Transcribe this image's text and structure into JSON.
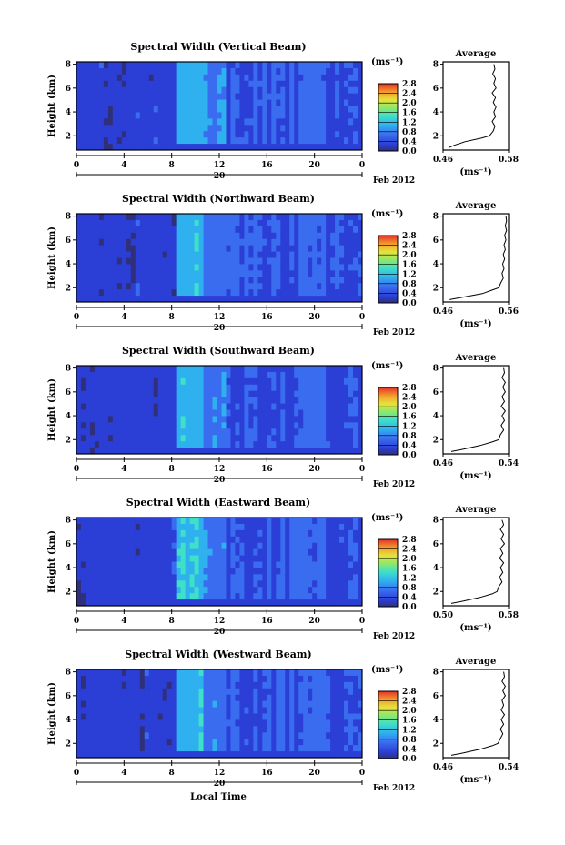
{
  "figure": {
    "xlabel": "Local Time",
    "date_tag": "Feb 2012",
    "day_label": "20"
  },
  "chart_data": [
    {
      "type": "heatmap",
      "title": "Spectral Width (Vertical Beam)",
      "ylabel": "Height (km)",
      "x_ticks": [
        "0",
        "4",
        "8",
        "12",
        "16",
        "20",
        "0"
      ],
      "xlim": [
        0,
        24
      ],
      "y_ticks": [
        "2",
        "4",
        "6",
        "8"
      ],
      "ylim": [
        0.8,
        8.2
      ],
      "colorbar": {
        "unit": "(ms⁻¹)",
        "ticks": [
          "0.0",
          "0.4",
          "0.8",
          "1.2",
          "1.6",
          "2.0",
          "2.4",
          "2.8"
        ],
        "range": [
          0,
          2.8
        ]
      },
      "average": {
        "title": "Average",
        "xlabel": "(ms⁻¹)",
        "x_ticks": [
          "0.46",
          "0.58"
        ],
        "xlim": [
          0.46,
          0.58
        ],
        "y_ticks": [
          "2",
          "4",
          "6",
          "8"
        ],
        "ylim": [
          0.8,
          8.2
        ],
        "profile_heights": [
          1.0,
          1.2,
          1.5,
          1.8,
          2.0,
          2.4,
          2.8,
          3.2,
          3.6,
          4.0,
          4.4,
          4.8,
          5.2,
          5.6,
          6.0,
          6.4,
          6.8,
          7.2,
          7.6,
          8.0
        ],
        "profile_values": [
          0.47,
          0.48,
          0.5,
          0.53,
          0.545,
          0.552,
          0.555,
          0.55,
          0.556,
          0.553,
          0.557,
          0.552,
          0.556,
          0.55,
          0.557,
          0.553,
          0.556,
          0.551,
          0.555,
          0.553
        ]
      }
    },
    {
      "type": "heatmap",
      "title": "Spectral Width (Northward Beam)",
      "ylabel": "Height (km)",
      "x_ticks": [
        "0",
        "4",
        "8",
        "12",
        "16",
        "20",
        "0"
      ],
      "xlim": [
        0,
        24
      ],
      "y_ticks": [
        "2",
        "4",
        "6",
        "8"
      ],
      "ylim": [
        0.8,
        8.2
      ],
      "colorbar": {
        "unit": "(ms⁻¹)",
        "ticks": [
          "0.0",
          "0.4",
          "0.8",
          "1.2",
          "1.6",
          "2.0",
          "2.4",
          "2.8"
        ],
        "range": [
          0,
          2.8
        ]
      },
      "average": {
        "title": "Average",
        "xlabel": "(ms⁻¹)",
        "x_ticks": [
          "0.46",
          "0.56"
        ],
        "xlim": [
          0.46,
          0.56
        ],
        "y_ticks": [
          "2",
          "4",
          "6",
          "8"
        ],
        "ylim": [
          0.8,
          8.2
        ],
        "profile_heights": [
          1.0,
          1.2,
          1.5,
          1.8,
          2.0,
          2.4,
          2.8,
          3.2,
          3.6,
          4.0,
          4.4,
          4.8,
          5.2,
          5.6,
          6.0,
          6.4,
          6.8,
          7.2,
          7.6,
          8.0
        ],
        "profile_values": [
          0.47,
          0.49,
          0.52,
          0.535,
          0.545,
          0.548,
          0.552,
          0.55,
          0.553,
          0.551,
          0.554,
          0.552,
          0.555,
          0.553,
          0.556,
          0.554,
          0.557,
          0.555,
          0.557,
          0.556
        ]
      }
    },
    {
      "type": "heatmap",
      "title": "Spectral Width (Southward Beam)",
      "ylabel": "Height (km)",
      "x_ticks": [
        "0",
        "4",
        "8",
        "12",
        "16",
        "20",
        "0"
      ],
      "xlim": [
        0,
        24
      ],
      "y_ticks": [
        "2",
        "4",
        "6",
        "8"
      ],
      "ylim": [
        0.8,
        8.2
      ],
      "colorbar": {
        "unit": "(ms⁻¹)",
        "ticks": [
          "0.0",
          "0.4",
          "0.8",
          "1.2",
          "1.6",
          "2.0",
          "2.4",
          "2.8"
        ],
        "range": [
          0,
          2.8
        ]
      },
      "average": {
        "title": "Average",
        "xlabel": "(ms⁻¹)",
        "x_ticks": [
          "0.46",
          "0.54"
        ],
        "xlim": [
          0.46,
          0.54
        ],
        "y_ticks": [
          "2",
          "4",
          "6",
          "8"
        ],
        "ylim": [
          0.8,
          8.2
        ],
        "profile_heights": [
          1.0,
          1.2,
          1.5,
          1.8,
          2.0,
          2.4,
          2.8,
          3.2,
          3.6,
          4.0,
          4.4,
          4.8,
          5.2,
          5.6,
          6.0,
          6.4,
          6.8,
          7.2,
          7.6,
          8.0
        ],
        "profile_values": [
          0.47,
          0.485,
          0.505,
          0.52,
          0.528,
          0.53,
          0.534,
          0.531,
          0.535,
          0.532,
          0.536,
          0.531,
          0.535,
          0.532,
          0.536,
          0.533,
          0.536,
          0.532,
          0.535,
          0.534
        ]
      }
    },
    {
      "type": "heatmap",
      "title": "Spectral Width (Eastward Beam)",
      "ylabel": "Height (km)",
      "x_ticks": [
        "0",
        "4",
        "8",
        "12",
        "16",
        "20",
        "0"
      ],
      "xlim": [
        0,
        24
      ],
      "y_ticks": [
        "2",
        "4",
        "6",
        "8"
      ],
      "ylim": [
        0.8,
        8.2
      ],
      "colorbar": {
        "unit": "(ms⁻¹)",
        "ticks": [
          "0.0",
          "0.4",
          "0.8",
          "1.2",
          "1.6",
          "2.0",
          "2.4",
          "2.8"
        ],
        "range": [
          0,
          2.8
        ]
      },
      "average": {
        "title": "Average",
        "xlabel": "(ms⁻¹)",
        "x_ticks": [
          "0.50",
          "0.58"
        ],
        "xlim": [
          0.5,
          0.58
        ],
        "y_ticks": [
          "2",
          "4",
          "6",
          "8"
        ],
        "ylim": [
          0.8,
          8.2
        ],
        "profile_heights": [
          1.0,
          1.2,
          1.5,
          1.8,
          2.0,
          2.4,
          2.8,
          3.2,
          3.6,
          4.0,
          4.4,
          4.8,
          5.2,
          5.6,
          6.0,
          6.4,
          6.8,
          7.2,
          7.6,
          8.0
        ],
        "profile_values": [
          0.51,
          0.525,
          0.545,
          0.56,
          0.566,
          0.568,
          0.572,
          0.569,
          0.573,
          0.57,
          0.574,
          0.569,
          0.573,
          0.57,
          0.575,
          0.571,
          0.574,
          0.57,
          0.574,
          0.572
        ]
      }
    },
    {
      "type": "heatmap",
      "title": "Spectral Width (Westward Beam)",
      "ylabel": "Height (km)",
      "x_ticks": [
        "0",
        "4",
        "8",
        "12",
        "16",
        "20",
        "0"
      ],
      "xlim": [
        0,
        24
      ],
      "y_ticks": [
        "2",
        "4",
        "6",
        "8"
      ],
      "ylim": [
        0.8,
        8.2
      ],
      "colorbar": {
        "unit": "(ms⁻¹)",
        "ticks": [
          "0.0",
          "0.4",
          "0.8",
          "1.2",
          "1.6",
          "2.0",
          "2.4",
          "2.8"
        ],
        "range": [
          0,
          2.8
        ]
      },
      "average": {
        "title": "Average",
        "xlabel": "(ms⁻¹)",
        "x_ticks": [
          "0.46",
          "0.54"
        ],
        "xlim": [
          0.46,
          0.54
        ],
        "y_ticks": [
          "2",
          "4",
          "6",
          "8"
        ],
        "ylim": [
          0.8,
          8.2
        ],
        "profile_heights": [
          1.0,
          1.2,
          1.5,
          1.8,
          2.0,
          2.4,
          2.8,
          3.2,
          3.6,
          4.0,
          4.4,
          4.8,
          5.2,
          5.6,
          6.0,
          6.4,
          6.8,
          7.2,
          7.6,
          8.0
        ],
        "profile_values": [
          0.47,
          0.485,
          0.505,
          0.52,
          0.527,
          0.53,
          0.533,
          0.53,
          0.534,
          0.531,
          0.535,
          0.531,
          0.534,
          0.532,
          0.536,
          0.533,
          0.536,
          0.532,
          0.535,
          0.534
        ]
      }
    }
  ]
}
